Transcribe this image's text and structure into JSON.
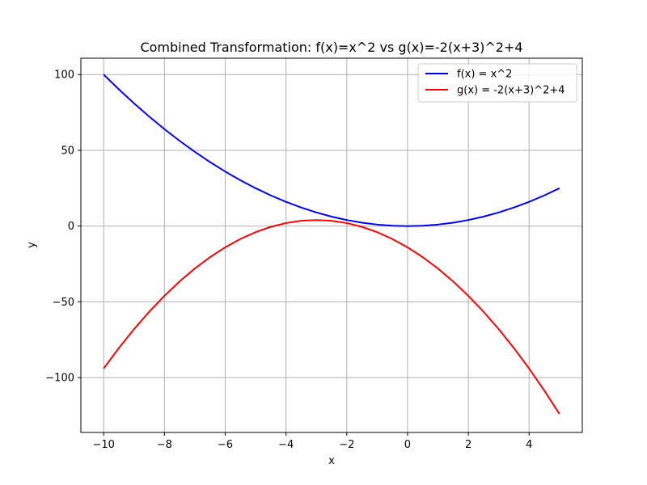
{
  "chart_data": {
    "type": "line",
    "title": "Combined Transformation: f(x)=x^2 vs g(x)=-2(x+3)^2+4",
    "xlabel": "x",
    "ylabel": "y",
    "xlim": [
      -10.75,
      5.75
    ],
    "ylim": [
      -136.2,
      110.8
    ],
    "xticks": [
      -10,
      -8,
      -6,
      -4,
      -2,
      0,
      2,
      4
    ],
    "xtick_labels": [
      "−10",
      "−8",
      "−6",
      "−4",
      "−2",
      "0",
      "2",
      "4"
    ],
    "yticks": [
      -100,
      -50,
      0,
      50,
      100
    ],
    "ytick_labels": [
      "−100",
      "−50",
      "0",
      "50",
      "100"
    ],
    "grid": true,
    "legend_position": "top-right",
    "x": [
      -10,
      -9.5,
      -9,
      -8.5,
      -8,
      -7.5,
      -7,
      -6.5,
      -6,
      -5.5,
      -5,
      -4.5,
      -4,
      -3.5,
      -3,
      -2.5,
      -2,
      -1.5,
      -1,
      -0.5,
      0,
      0.5,
      1,
      1.5,
      2,
      2.5,
      3,
      3.5,
      4,
      4.5,
      5
    ],
    "series": [
      {
        "name": "f(x) = x^2",
        "color": "#0000ff",
        "values": [
          100,
          90.25,
          81,
          72.25,
          64,
          56.25,
          49,
          42.25,
          36,
          30.25,
          25,
          20.25,
          16,
          12.25,
          9,
          6.25,
          4,
          2.25,
          1,
          0.25,
          0,
          0.25,
          1,
          2.25,
          4,
          6.25,
          9,
          12.25,
          16,
          20.25,
          25
        ]
      },
      {
        "name": "g(x) = -2(x+3)^2+4",
        "color": "#ff0000",
        "values": [
          -94,
          -80.5,
          -68,
          -56.5,
          -46,
          -36.5,
          -28,
          -20.5,
          -14,
          -8.5,
          -4,
          -0.5,
          2,
          3.5,
          4,
          3.5,
          2,
          -0.5,
          -4,
          -8.5,
          -14,
          -20.5,
          -28,
          -36.5,
          -46,
          -56.5,
          -68,
          -80.5,
          -94,
          -108.5,
          -124
        ]
      }
    ]
  }
}
